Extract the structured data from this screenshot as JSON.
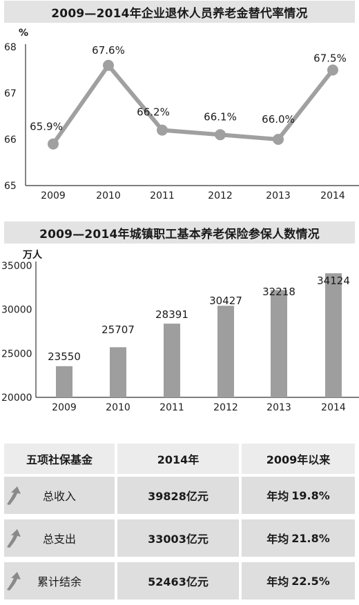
{
  "chart1": {
    "title": "2009—2014年企业退休人员养老金替代率情况",
    "unit": "%",
    "y_ticks": [
      "65",
      "66",
      "67",
      "68"
    ],
    "color": "#a0a0a0"
  },
  "chart2": {
    "title": "2009—2014年城镇职工基本养老保险参保人数情况",
    "unit": "万人",
    "y_ticks": [
      "20000",
      "25000",
      "30000",
      "35000"
    ],
    "color": "#9e9e9e"
  },
  "chart_data": [
    {
      "type": "line",
      "title": "2009—2014年企业退休人员养老金替代率情况",
      "ylabel": "%",
      "categories": [
        "2009",
        "2010",
        "2011",
        "2012",
        "2013",
        "2014"
      ],
      "values": [
        65.9,
        67.6,
        66.2,
        66.1,
        66.0,
        67.5
      ],
      "value_labels": [
        "65.9%",
        "67.6%",
        "66.2%",
        "66.1%",
        "66.0%",
        "67.5%"
      ],
      "ylim": [
        65,
        68
      ]
    },
    {
      "type": "bar",
      "title": "2009—2014年城镇职工基本养老保险参保人数情况",
      "ylabel": "万人",
      "categories": [
        "2009",
        "2010",
        "2011",
        "2012",
        "2013",
        "2014"
      ],
      "values": [
        23550,
        25707,
        28391,
        30427,
        32218,
        34124
      ],
      "value_labels": [
        "23550",
        "25707",
        "28391",
        "30427",
        "32218",
        "34124"
      ],
      "ylim": [
        20000,
        35000
      ]
    }
  ],
  "table": {
    "headers": [
      "五项社保基金",
      "2014年",
      "2009年以来"
    ],
    "rows": [
      {
        "name": "总收入",
        "amount": "39828亿元",
        "prefix": "年均",
        "growth": "19.8%"
      },
      {
        "name": "总支出",
        "amount": "33003亿元",
        "prefix": "年均",
        "growth": "21.8%"
      },
      {
        "name": "累计结余",
        "amount": "52463亿元",
        "prefix": "年均",
        "growth": "22.5%"
      }
    ],
    "arrow_icon": "up-arrow-icon"
  }
}
